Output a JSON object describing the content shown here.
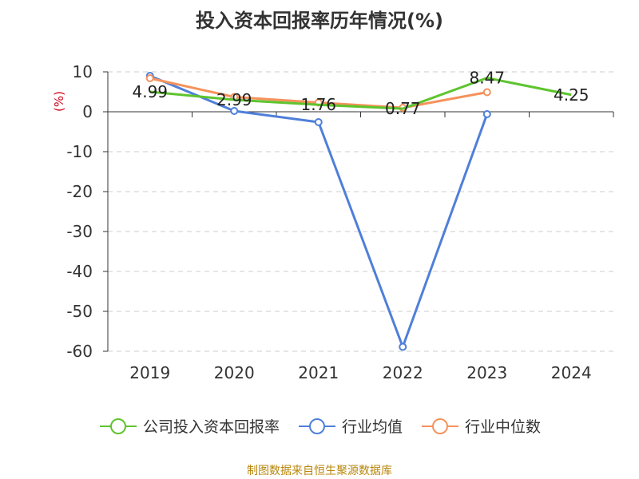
{
  "title": "投入资本回报率历年情况(%)",
  "source": "制图数据来自恒生聚源数据库",
  "colors": {
    "company": "#5ec42e",
    "industry_avg": "#4f7fd9",
    "industry_median": "#f5925b",
    "grid": "#cccccc",
    "axis": "#333333",
    "unit": "#d0021b"
  },
  "chart_data": {
    "type": "line",
    "title": "投入资本回报率历年情况(%)",
    "ylabel": "(%)",
    "xlabel": "",
    "categories": [
      "2019",
      "2020",
      "2021",
      "2022",
      "2023",
      "2024"
    ],
    "ylim": [
      -60,
      10
    ],
    "yticks": [
      "10",
      "0",
      "-10",
      "-20",
      "-30",
      "-40",
      "-50",
      "-60"
    ],
    "grid": "horizontal dashed",
    "legend_position": "bottom",
    "series": [
      {
        "name": "公司投入资本回报率",
        "values": [
          4.99,
          2.99,
          1.76,
          0.77,
          8.47,
          4.25
        ],
        "data_labels": [
          "4.99",
          "2.99",
          "1.76",
          "0.77",
          "8.47",
          "4.25"
        ]
      },
      {
        "name": "行业均值",
        "values": [
          9.0,
          0.2,
          -2.6,
          -58.9,
          -0.6,
          null
        ]
      },
      {
        "name": "行业中位数",
        "values": [
          8.4,
          3.7,
          2.3,
          1.0,
          4.9,
          null
        ]
      }
    ]
  }
}
